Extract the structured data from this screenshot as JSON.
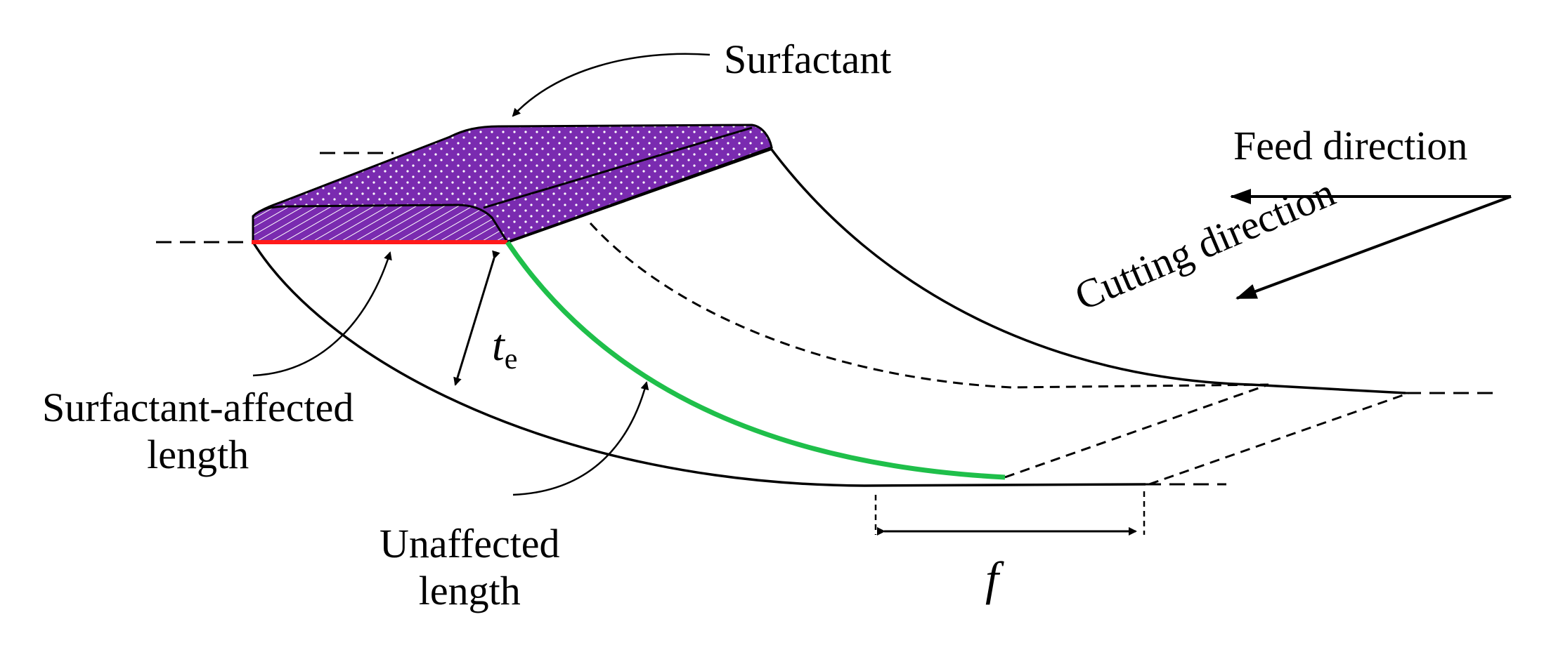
{
  "labels": {
    "surfactant": "Surfactant",
    "feed_direction": "Feed direction",
    "cutting_direction": "Cutting direction",
    "surfactant_affected_length_line1": "Surfactant-affected",
    "surfactant_affected_length_line2": "length",
    "unaffected_length_line1": "Unaffected",
    "unaffected_length_line2": "length",
    "chip_thickness_symbol": "t",
    "chip_thickness_subscript": "e",
    "feed_symbol": "f"
  },
  "colors": {
    "surfactant_fill": "#7a2bb0",
    "affected_length": "#ff1a1a",
    "unaffected_length": "#1fbf4a",
    "lines": "#000000"
  }
}
